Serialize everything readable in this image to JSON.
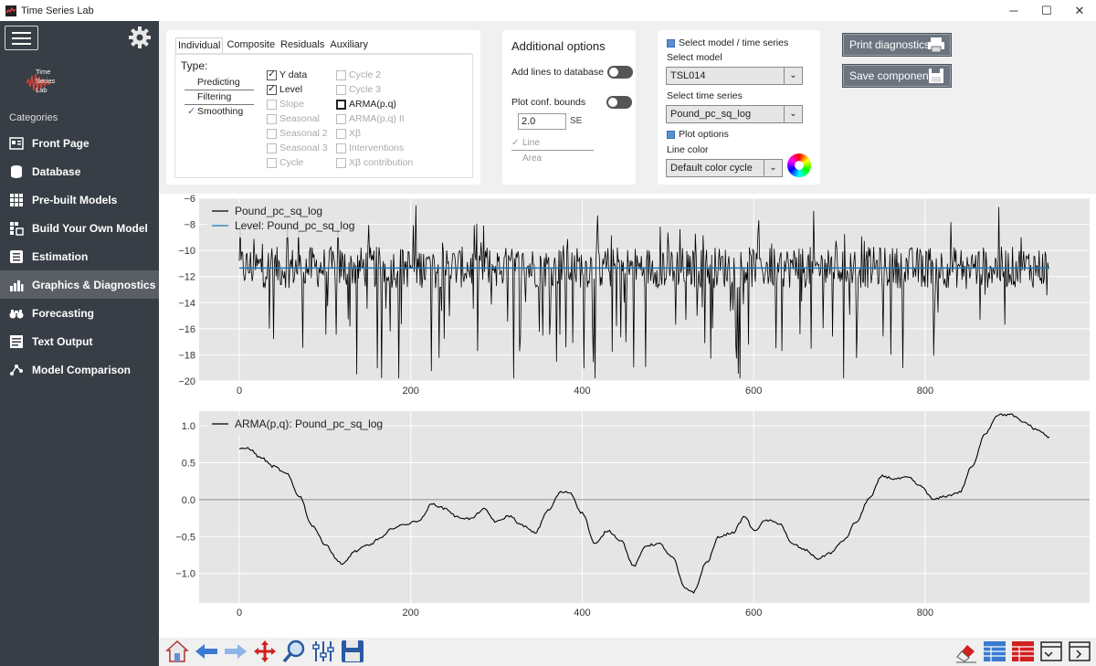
{
  "window": {
    "title": "Time Series Lab",
    "minimize": "─",
    "maximize": "☐",
    "close": "✕"
  },
  "sidebar": {
    "logo_text": [
      "Time",
      "Series",
      "Lab"
    ],
    "categories_label": "Categories",
    "items": [
      {
        "label": "Front Page",
        "icon": "front-page-icon"
      },
      {
        "label": "Database",
        "icon": "database-icon"
      },
      {
        "label": "Pre-built Models",
        "icon": "pre-built-models-icon"
      },
      {
        "label": "Build Your Own Model",
        "icon": "build-model-icon"
      },
      {
        "label": "Estimation",
        "icon": "estimation-icon"
      },
      {
        "label": "Graphics & Diagnostics",
        "icon": "graphics-icon",
        "active": true
      },
      {
        "label": "Forecasting",
        "icon": "forecasting-icon"
      },
      {
        "label": "Text Output",
        "icon": "text-output-icon"
      },
      {
        "label": "Model Comparison",
        "icon": "model-comparison-icon"
      }
    ]
  },
  "components_panel": {
    "tabs": [
      "Individual",
      "Composite",
      "Residuals",
      "Auxiliary"
    ],
    "active_tab": "Individual",
    "type_label": "Type:",
    "type_options": [
      "Predicting",
      "Filtering",
      "Smoothing"
    ],
    "selected_type": "Smoothing",
    "col1": [
      {
        "label": "Y data",
        "checked": true,
        "enabled": true
      },
      {
        "label": "Level",
        "checked": true,
        "enabled": true
      },
      {
        "label": "Slope",
        "checked": false,
        "enabled": false
      },
      {
        "label": "Seasonal",
        "checked": false,
        "enabled": false
      },
      {
        "label": "Seasonal 2",
        "checked": false,
        "enabled": false
      },
      {
        "label": "Seasonal 3",
        "checked": false,
        "enabled": false
      },
      {
        "label": "Cycle",
        "checked": false,
        "enabled": false
      }
    ],
    "col2": [
      {
        "label": "Cycle 2",
        "checked": false,
        "enabled": false
      },
      {
        "label": "Cycle 3",
        "checked": false,
        "enabled": false
      },
      {
        "label": "ARMA(p,q)",
        "checked": false,
        "enabled": true
      },
      {
        "label": "ARMA(p,q) II",
        "checked": false,
        "enabled": false
      },
      {
        "label": "Xβ",
        "checked": false,
        "enabled": false
      },
      {
        "label": "Interventions",
        "checked": false,
        "enabled": false
      },
      {
        "label": "Xβ contribution",
        "checked": false,
        "enabled": false
      }
    ]
  },
  "additional_options": {
    "title": "Additional options",
    "add_lines_label": "Add lines to database",
    "plot_conf_label": "Plot conf. bounds",
    "conf_value": "2.0",
    "se_label": "SE",
    "line_label": "Line",
    "area_label": "Area"
  },
  "select_panel": {
    "header": "Select model / time series",
    "model_label": "Select model",
    "model_value": "TSL014",
    "series_label": "Select time series",
    "series_value": "Pound_pc_sq_log",
    "plot_options_label": "Plot options",
    "line_color_label": "Line color",
    "line_color_value": "Default color cycle"
  },
  "buttons": {
    "print": "Print diagnostics",
    "save": "Save components"
  },
  "chart_data": [
    {
      "type": "line",
      "series": [
        {
          "name": "Pound_pc_sq_log",
          "color": "#000000"
        },
        {
          "name": "Level: Pound_pc_sq_log",
          "color": "#1f77b4",
          "constant": -11.35
        }
      ],
      "xlim": [
        0,
        945
      ],
      "ylim": [
        -20,
        -6
      ],
      "xticks": [
        0,
        200,
        400,
        600,
        800
      ],
      "yticks": [
        -6,
        -8,
        -10,
        -12,
        -14,
        -16,
        -18,
        -20
      ],
      "n_points": 945
    },
    {
      "type": "line",
      "series": [
        {
          "name": "ARMA(p,q): Pound_pc_sq_log",
          "color": "#000000",
          "x": [
            0,
            10,
            25,
            40,
            55,
            70,
            85,
            100,
            115,
            120,
            135,
            150,
            165,
            180,
            195,
            210,
            225,
            240,
            255,
            270,
            285,
            300,
            315,
            330,
            345,
            360,
            375,
            385,
            400,
            415,
            430,
            445,
            460,
            475,
            490,
            505,
            520,
            530,
            545,
            560,
            575,
            590,
            600,
            615,
            630,
            645,
            660,
            675,
            690,
            705,
            720,
            735,
            750,
            765,
            780,
            795,
            810,
            825,
            840,
            855,
            870,
            885,
            900,
            915,
            930,
            945
          ],
          "values": [
            0.68,
            0.7,
            0.57,
            0.45,
            0.35,
            0.05,
            -0.35,
            -0.6,
            -0.82,
            -0.88,
            -0.7,
            -0.62,
            -0.52,
            -0.38,
            -0.33,
            -0.28,
            -0.06,
            -0.12,
            -0.24,
            -0.26,
            -0.13,
            -0.3,
            -0.22,
            -0.35,
            -0.45,
            -0.15,
            0.1,
            0.1,
            -0.18,
            -0.6,
            -0.42,
            -0.55,
            -0.9,
            -0.62,
            -0.6,
            -0.78,
            -1.2,
            -1.25,
            -0.85,
            -0.5,
            -0.45,
            -0.23,
            -0.42,
            -0.28,
            -0.32,
            -0.6,
            -0.68,
            -0.8,
            -0.72,
            -0.55,
            -0.3,
            0.02,
            0.32,
            0.28,
            0.3,
            0.18,
            0.0,
            0.05,
            0.1,
            0.45,
            0.9,
            1.15,
            1.15,
            1.05,
            0.95,
            0.85
          ]
        }
      ],
      "xlim": [
        0,
        945
      ],
      "ylim": [
        -1.4,
        1.2
      ],
      "xticks": [
        0,
        200,
        400,
        600,
        800
      ],
      "yticks": [
        1.0,
        0.5,
        0.0,
        -0.5,
        -1.0
      ]
    }
  ],
  "toolbar": {
    "left": [
      "home-icon",
      "back-icon",
      "forward-icon",
      "pan-icon",
      "zoom-icon",
      "configure-icon",
      "save-figure-icon"
    ],
    "right": [
      "eraser-icon",
      "layout-1-icon",
      "layout-2-icon",
      "layout-3-icon",
      "layout-4-icon"
    ]
  }
}
